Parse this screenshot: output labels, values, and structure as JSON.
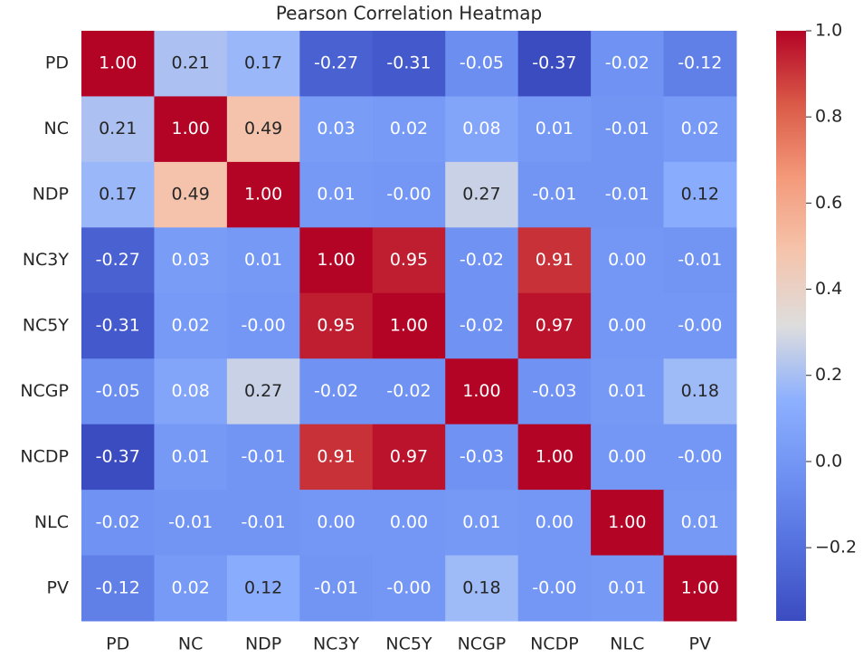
{
  "chart_data": {
    "type": "heatmap",
    "title": "Pearson Correlation Heatmap",
    "x_categories": [
      "PD",
      "NC",
      "NDP",
      "NC3Y",
      "NC5Y",
      "NCGP",
      "NCDP",
      "NLC",
      "PV"
    ],
    "y_categories": [
      "PD",
      "NC",
      "NDP",
      "NC3Y",
      "NC5Y",
      "NCGP",
      "NCDP",
      "NLC",
      "PV"
    ],
    "values": [
      [
        1,
        0.21,
        0.17,
        -0.27,
        -0.31,
        -0.05,
        -0.37,
        -0.02,
        -0.12
      ],
      [
        0.21,
        1,
        0.49,
        0.03,
        0.02,
        0.08,
        0.01,
        -0.01,
        0.02
      ],
      [
        0.17,
        0.49,
        1,
        0.01,
        0,
        0.27,
        -0.01,
        -0.01,
        0.12
      ],
      [
        -0.27,
        0.03,
        0.01,
        1,
        0.95,
        -0.02,
        0.91,
        0,
        -0.01
      ],
      [
        -0.31,
        0.02,
        0,
        0.95,
        1,
        -0.02,
        0.97,
        0,
        0
      ],
      [
        -0.05,
        0.08,
        0.27,
        -0.02,
        -0.02,
        1,
        -0.03,
        0.01,
        0.18
      ],
      [
        -0.37,
        0.01,
        -0.01,
        0.91,
        0.97,
        -0.03,
        1,
        0,
        0
      ],
      [
        -0.02,
        -0.01,
        -0.01,
        0,
        0,
        0.01,
        0,
        1,
        0.01
      ],
      [
        -0.12,
        0.02,
        0.12,
        -0.01,
        0,
        0.18,
        0,
        0.01,
        1
      ]
    ],
    "value_labels": [
      [
        "1.00",
        "0.21",
        "0.17",
        "-0.27",
        "-0.31",
        "-0.05",
        "-0.37",
        "-0.02",
        "-0.12"
      ],
      [
        "0.21",
        "1.00",
        "0.49",
        "0.03",
        "0.02",
        "0.08",
        "0.01",
        "-0.01",
        "0.02"
      ],
      [
        "0.17",
        "0.49",
        "1.00",
        "0.01",
        "-0.00",
        "0.27",
        "-0.01",
        "-0.01",
        "0.12"
      ],
      [
        "-0.27",
        "0.03",
        "0.01",
        "1.00",
        "0.95",
        "-0.02",
        "0.91",
        "0.00",
        "-0.01"
      ],
      [
        "-0.31",
        "0.02",
        "-0.00",
        "0.95",
        "1.00",
        "-0.02",
        "0.97",
        "0.00",
        "-0.00"
      ],
      [
        "-0.05",
        "0.08",
        "0.27",
        "-0.02",
        "-0.02",
        "1.00",
        "-0.03",
        "0.01",
        "0.18"
      ],
      [
        "-0.37",
        "0.01",
        "-0.01",
        "0.91",
        "0.97",
        "-0.03",
        "1.00",
        "0.00",
        "-0.00"
      ],
      [
        "-0.02",
        "-0.01",
        "-0.01",
        "0.00",
        "0.00",
        "0.01",
        "0.00",
        "1.00",
        "0.01"
      ],
      [
        "-0.12",
        "0.02",
        "0.12",
        "-0.01",
        "-0.00",
        "0.18",
        "-0.00",
        "0.01",
        "1.00"
      ]
    ],
    "colormap": "coolwarm",
    "clim": [
      -0.37,
      1
    ],
    "cticks": [
      {
        "value": 1,
        "label": "1.0"
      },
      0.8,
      0.6,
      0.4,
      0.2,
      {
        "value": 0,
        "label": "0.0"
      },
      {
        "value": -0.2,
        "label": "−0.2"
      }
    ]
  }
}
